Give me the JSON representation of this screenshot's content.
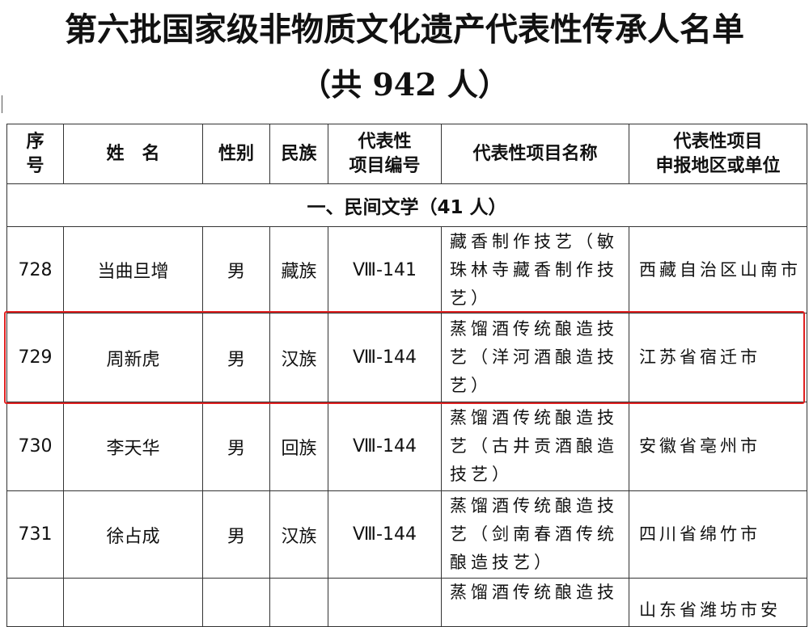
{
  "title": "第六批国家级非物质文化遗产代表性传承人名单",
  "subtitle": "（共 942 人）",
  "table": {
    "headers": [
      "序号",
      "姓　名",
      "性别",
      "民族",
      "代表性项目编号",
      "代表性项目名称",
      "代表性项目申报地区或单位"
    ],
    "header_lines": [
      [
        "序",
        "号"
      ],
      [
        "姓　名"
      ],
      [
        "性别"
      ],
      [
        "民族"
      ],
      [
        "代表性",
        "项目编号"
      ],
      [
        "代表性项目名称"
      ],
      [
        "代表性项目",
        "申报地区或单位"
      ]
    ],
    "section": "一、民间文学（41 人）",
    "rows": [
      {
        "no": "728",
        "name": "当曲旦增",
        "gender": "男",
        "ethnicity": "藏族",
        "code": "Ⅷ-141",
        "project": "藏香制作技艺（敏珠林寺藏香制作技艺）",
        "area": "西藏自治区山南市"
      },
      {
        "no": "729",
        "name": "周新虎",
        "gender": "男",
        "ethnicity": "汉族",
        "code": "Ⅷ-144",
        "project": "蒸馏酒传统酿造技艺（洋河酒酿造技艺）",
        "area": "江苏省宿迁市"
      },
      {
        "no": "730",
        "name": "李天华",
        "gender": "男",
        "ethnicity": "回族",
        "code": "Ⅷ-144",
        "project": "蒸馏酒传统酿造技艺（古井贡酒酿造技艺）",
        "area": "安徽省亳州市"
      },
      {
        "no": "731",
        "name": "徐占成",
        "gender": "男",
        "ethnicity": "汉族",
        "code": "Ⅷ-144",
        "project": "蒸馏酒传统酿造技艺（剑南春酒传统酿造技艺）",
        "area": "四川省绵竹市"
      },
      {
        "no": "",
        "name": "",
        "gender": "",
        "ethnicity": "",
        "code": "",
        "project": "蒸馏酒传统酿造技",
        "area": "山东省潍坊市安"
      }
    ]
  },
  "highlight_color": "#e02020"
}
